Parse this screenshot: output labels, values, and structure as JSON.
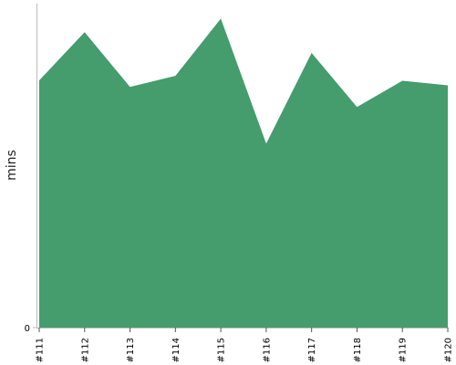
{
  "chart_data": {
    "type": "area",
    "title": "",
    "xlabel": "",
    "ylabel": "mins",
    "categories": [
      "#111",
      "#112",
      "#113",
      "#114",
      "#115",
      "#116",
      "#117",
      "#118",
      "#119",
      "#120"
    ],
    "series": [
      {
        "values": [
          76.3,
          91.2,
          74.3,
          77.7,
          95.4,
          56.8,
          84.8,
          68.1,
          76.2,
          74.8
        ]
      }
    ],
    "ylim": [
      0,
      100
    ],
    "y_ticks": [
      "0"
    ],
    "grid": false,
    "legend": "none",
    "colors": {
      "fill": "#459c6c",
      "axis": "#bbbbbb",
      "tick": "#555555"
    }
  }
}
